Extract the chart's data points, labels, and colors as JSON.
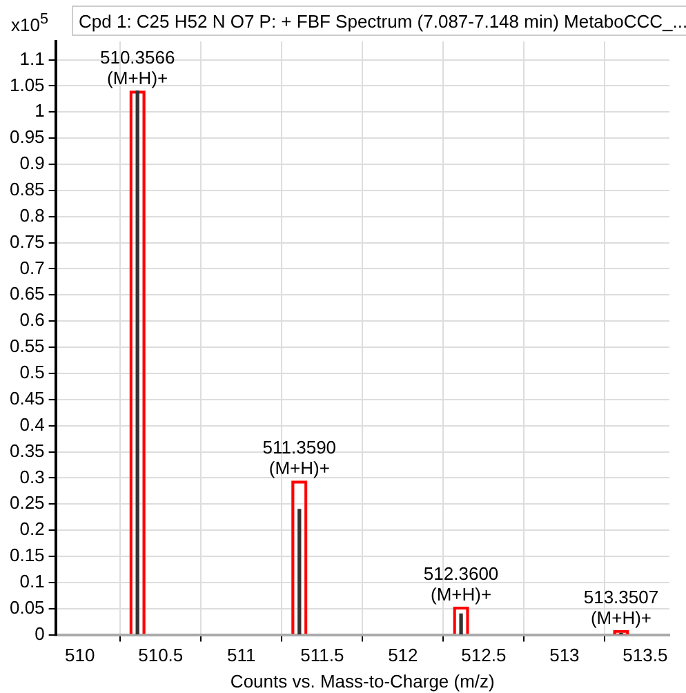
{
  "chart_data": {
    "type": "bar",
    "title": "Cpd 1: C25 H52 N O7 P: + FBF Spectrum (7.087-7.148 min) MetaboCCC_...",
    "xlabel": "Counts vs. Mass-to-Charge (m/z)",
    "ylabel": "x10$^{5}$",
    "series": [
      {
        "color": "#ff0000",
        "x": [
          510.3566,
          511.359,
          512.36,
          513.3507
        ],
        "values": [
          1.04,
          0.294,
          0.053,
          0.008
        ]
      },
      {
        "color": "#333333",
        "x": [
          510.3566,
          511.359,
          512.36,
          513.3507
        ],
        "values": [
          1.04,
          0.24,
          0.04,
          0.003
        ]
      }
    ],
    "annotations": [
      {
        "text": "510.3566\n(M+H)+",
        "x": 510.3566,
        "y": 1.04
      },
      {
        "text": "511.3590\n(M+H)+",
        "x": 511.359,
        "y": 0.294
      },
      {
        "text": "512.3600\n(M+H)+",
        "x": 512.36,
        "y": 0.053
      },
      {
        "text": "513.3507\n(M+H)+",
        "x": 513.3507,
        "y": 0.008
      }
    ],
    "xlim": [
      509.85,
      513.65
    ],
    "xticks": [
      510,
      510.5,
      511,
      511.5,
      512,
      512.5,
      513,
      513.5
    ],
    "ylim": [
      0,
      1.135
    ],
    "yticks": [
      0,
      0.05,
      0.1,
      0.15,
      0.2,
      0.25,
      0.3,
      0.35,
      0.4,
      0.45,
      0.5,
      0.55,
      0.6,
      0.65,
      0.7,
      0.75,
      0.8,
      0.85,
      0.9,
      0.95,
      1,
      1.05,
      1.1
    ],
    "grid": true,
    "legend": false
  }
}
